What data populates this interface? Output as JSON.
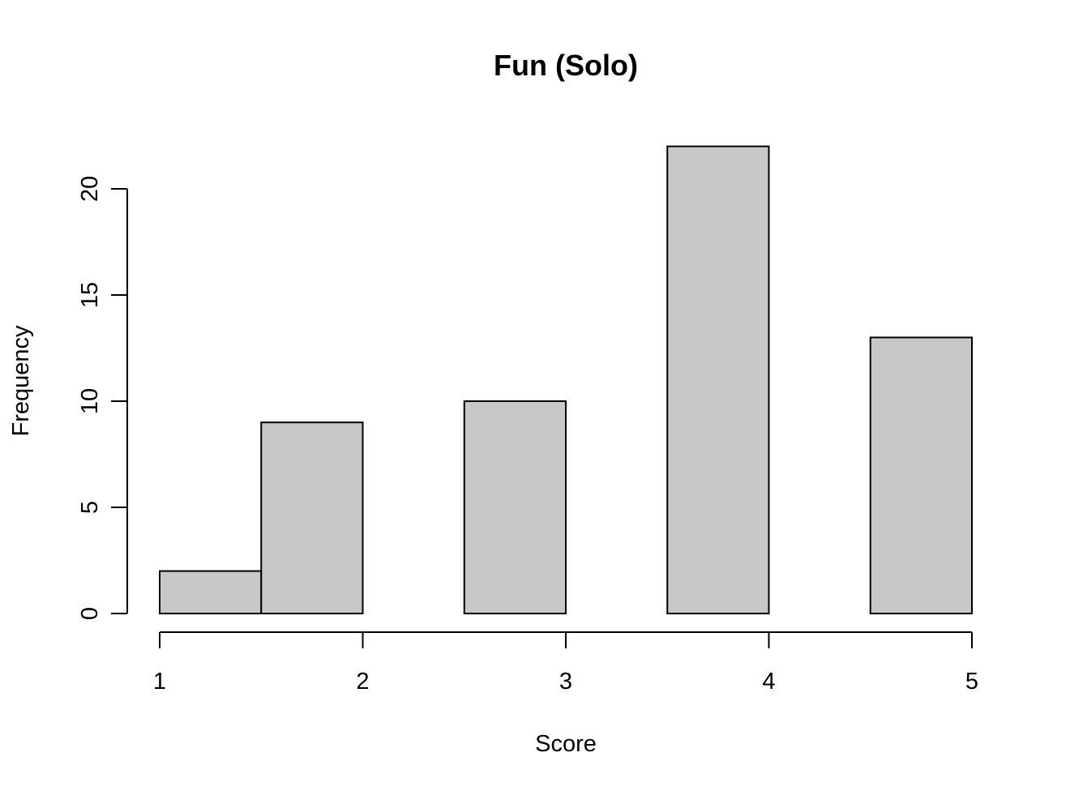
{
  "chart_data": {
    "type": "bar",
    "title": "Fun (Solo)",
    "xlabel": "Score",
    "ylabel": "Frequency",
    "bins": [
      {
        "x0": 1.0,
        "x1": 1.5,
        "count": 2
      },
      {
        "x0": 1.5,
        "x1": 2.0,
        "count": 9
      },
      {
        "x0": 2.0,
        "x1": 2.5,
        "count": 0
      },
      {
        "x0": 2.5,
        "x1": 3.0,
        "count": 10
      },
      {
        "x0": 3.0,
        "x1": 3.5,
        "count": 0
      },
      {
        "x0": 3.5,
        "x1": 4.0,
        "count": 22
      },
      {
        "x0": 4.0,
        "x1": 4.5,
        "count": 0
      },
      {
        "x0": 4.5,
        "x1": 5.0,
        "count": 13
      }
    ],
    "xlim": [
      1,
      5
    ],
    "ylim": [
      0,
      22
    ],
    "x_ticks": [
      1,
      2,
      3,
      4,
      5
    ],
    "y_ticks": [
      0,
      5,
      10,
      15,
      20
    ],
    "bar_fill": "#c8c8c8",
    "bar_stroke": "#000000",
    "grid": false,
    "legend": "none"
  }
}
